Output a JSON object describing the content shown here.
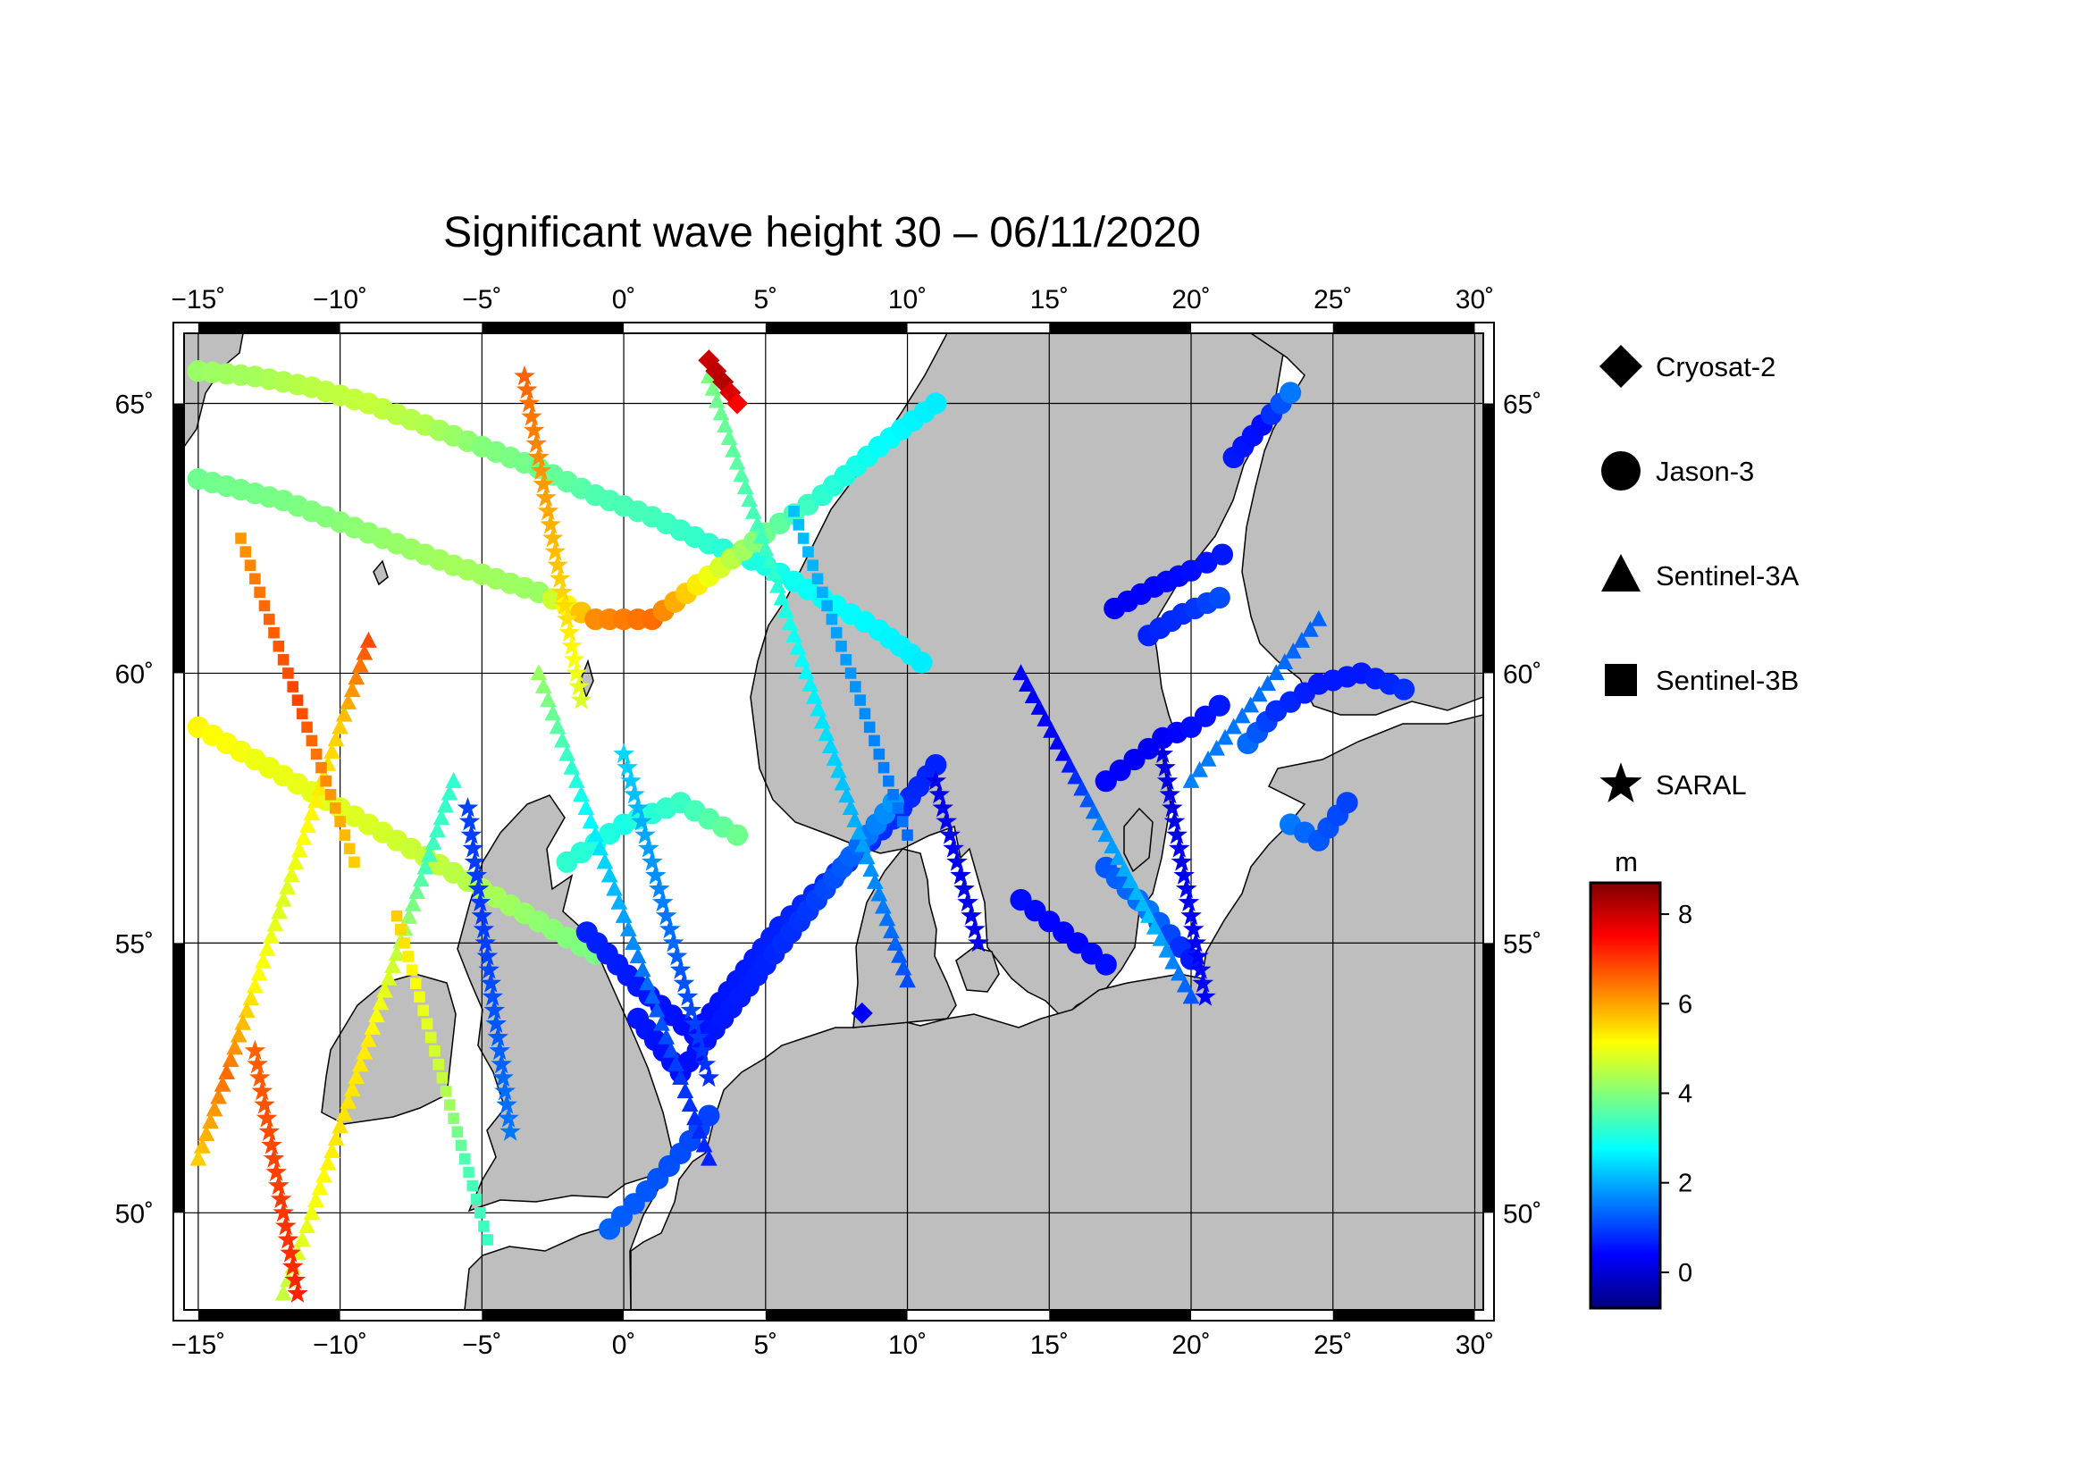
{
  "title": "Significant wave height 30 – 06/11/2020",
  "map": {
    "lon_range": [
      -15.5,
      30.3
    ],
    "lat_range": [
      48.2,
      66.3
    ],
    "lon_ticks": [
      -15,
      -10,
      -5,
      0,
      5,
      10,
      15,
      20,
      25,
      30
    ],
    "lat_ticks": [
      50,
      55,
      60,
      65
    ],
    "lon_tick_labels": [
      "−15",
      "−10",
      "−5",
      "0",
      "5",
      "10",
      "15",
      "20",
      "25",
      "30"
    ],
    "lat_tick_labels": [
      "50",
      "55",
      "60",
      "65"
    ],
    "degree_symbol": "˚",
    "grid": true,
    "colors": {
      "land": "#bebebe",
      "sea": "#ffffff",
      "coast": "#000000",
      "grid": "#000000"
    }
  },
  "legend": {
    "placement": "right",
    "items": [
      {
        "label": "Cryosat-2",
        "marker": "diamond"
      },
      {
        "label": "Jason-3",
        "marker": "circle"
      },
      {
        "label": "Sentinel-3A",
        "marker": "triangle"
      },
      {
        "label": "Sentinel-3B",
        "marker": "square"
      },
      {
        "label": "SARAL",
        "marker": "star"
      }
    ]
  },
  "colorbar": {
    "unit": "m",
    "range": [
      -0.8,
      8.7
    ],
    "ticks": [
      0,
      2,
      4,
      6,
      8
    ],
    "tick_labels": [
      "0",
      "2",
      "4",
      "6",
      "8"
    ],
    "colormap": [
      "#00007f",
      "#0000ff",
      "#007fff",
      "#00ffff",
      "#7fff7f",
      "#ffff00",
      "#ff7f00",
      "#ff0000",
      "#7f0000"
    ]
  },
  "chart_data": {
    "type": "scatter",
    "title": "Significant wave height 30 – 06/11/2020",
    "colorbar_label": "m",
    "series": [
      {
        "name": "Jason-3",
        "marker": "circle",
        "tracks": [
          {
            "lon": [
              -15.0,
              -13.0,
              -11.0,
              -9.0,
              -7.0,
              -5.0,
              -3.0,
              -1.0,
              1.0,
              3.0,
              5.0,
              7.0,
              9.0,
              10.5
            ],
            "lat": [
              65.6,
              65.5,
              65.3,
              65.0,
              64.6,
              64.2,
              63.8,
              63.3,
              62.9,
              62.4,
              62.0,
              61.4,
              60.8,
              60.2
            ],
            "swh": [
              4.2,
              4.3,
              4.5,
              4.6,
              4.4,
              4.0,
              3.8,
              3.5,
              3.4,
              3.2,
              3.0,
              2.8,
              2.7,
              2.6
            ]
          },
          {
            "lon": [
              -15.0,
              -12.0,
              -9.0,
              -6.0,
              -3.0,
              -1.0,
              1.0,
              3.0,
              5.0,
              7.0,
              9.0,
              11.0
            ],
            "lat": [
              63.6,
              63.2,
              62.6,
              62.0,
              61.5,
              61.0,
              61.0,
              61.8,
              62.6,
              63.3,
              64.2,
              65.0
            ],
            "swh": [
              3.8,
              3.9,
              4.1,
              4.3,
              4.2,
              6.2,
              6.5,
              5.0,
              3.8,
              3.2,
              2.8,
              2.6
            ]
          },
          {
            "lon": [
              -15.0,
              -13.0,
              -11.0,
              -9.0,
              -7.0,
              -5.0,
              -3.0,
              -1.0
            ],
            "lat": [
              59.0,
              58.4,
              57.8,
              57.2,
              56.6,
              56.0,
              55.4,
              54.8
            ],
            "swh": [
              5.2,
              5.0,
              4.9,
              4.8,
              4.6,
              4.4,
              4.1,
              3.9
            ]
          },
          {
            "lon": [
              -2.0,
              0.0,
              2.0,
              4.0
            ],
            "lat": [
              56.5,
              57.2,
              57.6,
              57.0
            ],
            "swh": [
              3.2,
              3.0,
              3.3,
              3.8
            ]
          },
          {
            "lon": [
              -0.5,
              0.8,
              2.0,
              3.0
            ],
            "lat": [
              49.7,
              50.4,
              51.1,
              51.8
            ],
            "swh": [
              1.3,
              1.2,
              1.1,
              1.0
            ]
          },
          {
            "lon": [
              -1.3,
              0.5,
              2.5,
              4.0,
              5.5,
              7.5,
              9.5,
              11.0
            ],
            "lat": [
              55.2,
              54.2,
              53.3,
              54.3,
              55.3,
              56.3,
              57.3,
              58.3
            ],
            "swh": [
              0.7,
              0.6,
              0.5,
              0.6,
              0.7,
              0.8,
              0.8,
              0.7
            ]
          },
          {
            "lon": [
              0.5,
              2.0,
              3.5,
              5.0,
              6.5,
              8.0,
              9.5
            ],
            "lat": [
              53.6,
              52.6,
              53.6,
              54.6,
              55.6,
              56.6,
              57.6
            ],
            "swh": [
              0.6,
              0.5,
              0.6,
              0.7,
              0.9,
              1.3,
              1.8
            ]
          },
          {
            "lon": [
              14.0,
              15.0,
              16.0,
              17.0
            ],
            "lat": [
              55.8,
              55.4,
              55.0,
              54.6
            ],
            "swh": [
              0.5,
              0.4,
              0.4,
              0.5
            ]
          },
          {
            "lon": [
              17.0,
              18.5,
              20.0
            ],
            "lat": [
              56.4,
              55.6,
              54.7
            ],
            "swh": [
              1.2,
              1.5,
              0.6
            ]
          },
          {
            "lon": [
              17.0,
              18.0,
              19.0,
              20.0,
              21.0
            ],
            "lat": [
              58.0,
              58.4,
              58.8,
              59.0,
              59.4
            ],
            "swh": [
              0.4,
              0.3,
              0.3,
              0.5,
              0.6
            ]
          },
          {
            "lon": [
              17.3,
              18.7,
              20.0,
              21.1
            ],
            "lat": [
              61.2,
              61.6,
              61.9,
              62.2
            ],
            "swh": [
              0.3,
              0.4,
              0.5,
              0.6
            ]
          },
          {
            "lon": [
              18.5,
              19.7,
              21.0
            ],
            "lat": [
              60.7,
              61.1,
              61.4
            ],
            "swh": [
              0.7,
              0.8,
              1.1
            ]
          },
          {
            "lon": [
              21.5,
              22.5,
              23.5
            ],
            "lat": [
              64.0,
              64.6,
              65.2
            ],
            "swh": [
              0.6,
              0.5,
              1.5
            ]
          },
          {
            "lon": [
              22.0,
              23.0,
              24.5,
              26.0,
              27.5
            ],
            "lat": [
              58.7,
              59.3,
              59.8,
              60.0,
              59.7
            ],
            "swh": [
              1.4,
              0.8,
              0.6,
              0.6,
              0.8
            ]
          },
          {
            "lon": [
              23.5,
              24.5,
              25.5
            ],
            "lat": [
              57.2,
              56.9,
              57.6
            ],
            "swh": [
              1.5,
              1.2,
              1.0
            ]
          }
        ]
      },
      {
        "name": "Sentinel-3A",
        "marker": "triangle",
        "tracks": [
          {
            "lon": [
              -9.0,
              -10.0,
              -11.0,
              -12.0,
              -13.0,
              -14.0,
              -15.0
            ],
            "lat": [
              60.6,
              59.0,
              57.4,
              55.8,
              54.2,
              52.6,
              51.0
            ],
            "swh": [
              6.8,
              5.6,
              5.2,
              4.8,
              5.2,
              6.5,
              5.6
            ]
          },
          {
            "lon": [
              -6.0,
              -7.0,
              -8.0,
              -9.0,
              -10.0,
              -11.0,
              -12.0
            ],
            "lat": [
              58.0,
              56.4,
              54.8,
              53.2,
              51.6,
              50.0,
              48.5
            ],
            "swh": [
              3.2,
              3.4,
              4.6,
              5.3,
              5.4,
              5.0,
              4.6
            ]
          },
          {
            "lon": [
              3.0,
              4.0,
              5.0,
              6.0,
              7.0,
              8.0,
              9.0,
              10.0
            ],
            "lat": [
              65.5,
              63.9,
              62.3,
              60.7,
              59.1,
              57.5,
              55.9,
              54.3
            ],
            "swh": [
              3.9,
              3.6,
              3.3,
              2.9,
              2.5,
              2.1,
              1.6,
              1.1
            ]
          },
          {
            "lon": [
              -3.0,
              -2.0,
              -1.0,
              0.0,
              1.0,
              2.0,
              3.0
            ],
            "lat": [
              60.0,
              58.5,
              57.0,
              55.5,
              54.0,
              52.5,
              51.0
            ],
            "swh": [
              4.2,
              3.3,
              2.6,
              1.9,
              1.3,
              0.9,
              0.7
            ]
          },
          {
            "lon": [
              14.0,
              15.5,
              17.0,
              18.5,
              20.0
            ],
            "lat": [
              60.0,
              58.5,
              57.0,
              55.5,
              54.0
            ],
            "swh": [
              0.3,
              0.4,
              1.8,
              2.2,
              1.2
            ]
          },
          {
            "lon": [
              20.0,
              21.5,
              23.0,
              24.5
            ],
            "lat": [
              58.0,
              59.0,
              60.0,
              61.0
            ],
            "swh": [
              1.6,
              1.5,
              1.4,
              1.3
            ]
          }
        ]
      },
      {
        "name": "Sentinel-3B",
        "marker": "square",
        "tracks": [
          {
            "lon": [
              -13.5,
              -12.5,
              -11.5,
              -10.5,
              -9.5
            ],
            "lat": [
              62.5,
              61.0,
              59.5,
              58.0,
              56.5
            ],
            "swh": [
              6.1,
              6.6,
              6.9,
              6.2,
              5.6
            ]
          },
          {
            "lon": [
              -8.0,
              -7.2,
              -6.4,
              -5.6,
              -4.8
            ],
            "lat": [
              55.5,
              54.0,
              52.5,
              51.0,
              49.5
            ],
            "swh": [
              5.6,
              5.0,
              4.6,
              3.5,
              3.3
            ]
          },
          {
            "lon": [
              6.0,
              7.0,
              8.0,
              9.0,
              10.0
            ],
            "lat": [
              63.0,
              61.5,
              60.0,
              58.5,
              57.0
            ],
            "swh": [
              2.2,
              2.0,
              1.8,
              1.6,
              1.4
            ]
          }
        ]
      },
      {
        "name": "SARAL",
        "marker": "star",
        "tracks": [
          {
            "lon": [
              -3.5,
              -3.0,
              -2.5,
              -2.0,
              -1.5
            ],
            "lat": [
              65.5,
              64.0,
              62.5,
              61.0,
              59.5
            ],
            "swh": [
              6.6,
              6.2,
              5.8,
              5.4,
              4.8
            ]
          },
          {
            "lon": [
              -13.0,
              -12.5,
              -12.0,
              -11.5
            ],
            "lat": [
              53.0,
              51.5,
              50.0,
              48.5
            ],
            "swh": [
              6.6,
              6.8,
              7.0,
              7.2
            ]
          },
          {
            "lon": [
              -5.5,
              -5.0,
              -4.5,
              -4.0
            ],
            "lat": [
              57.5,
              55.5,
              53.5,
              51.5
            ],
            "swh": [
              1.0,
              0.9,
              1.2,
              1.5
            ]
          },
          {
            "lon": [
              0.0,
              1.0,
              2.0,
              3.0
            ],
            "lat": [
              58.5,
              56.5,
              54.5,
              52.5
            ],
            "swh": [
              2.4,
              1.8,
              1.2,
              0.8
            ]
          },
          {
            "lon": [
              11.0,
              11.5,
              12.0,
              12.5
            ],
            "lat": [
              58.0,
              57.0,
              56.0,
              55.0
            ],
            "swh": [
              0.2,
              0.3,
              0.2,
              0.2
            ]
          },
          {
            "lon": [
              19.0,
              19.5,
              20.0,
              20.5
            ],
            "lat": [
              58.5,
              57.0,
              55.5,
              54.0
            ],
            "swh": [
              0.1,
              0.2,
              0.3,
              0.4
            ]
          }
        ]
      },
      {
        "name": "Cryosat-2",
        "marker": "diamond",
        "tracks": [
          {
            "lon": [
              3.0,
              3.5,
              4.0
            ],
            "lat": [
              65.8,
              65.4,
              65.0
            ],
            "swh": [
              8.0,
              8.2,
              7.5
            ]
          },
          {
            "lon": [
              8.4
            ],
            "lat": [
              53.7
            ],
            "swh": [
              0.3
            ]
          }
        ]
      }
    ]
  }
}
